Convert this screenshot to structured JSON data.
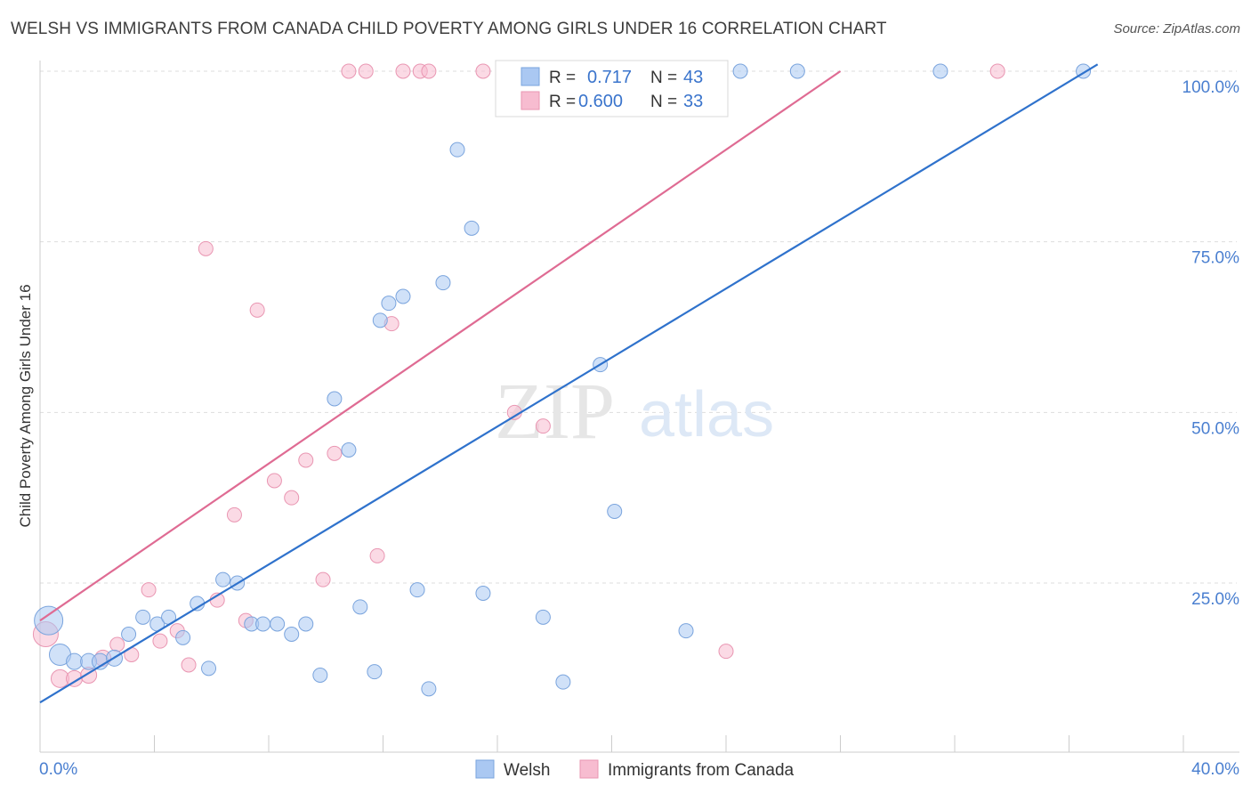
{
  "title": "WELSH VS IMMIGRANTS FROM CANADA CHILD POVERTY AMONG GIRLS UNDER 16 CORRELATION CHART",
  "source": "Source: ZipAtlas.com",
  "watermark": {
    "zip": "ZIP",
    "atlas": "atlas"
  },
  "colors": {
    "welsh_fill": "#aac8f2",
    "welsh_stroke": "#7aa4dd",
    "welsh_line": "#2f72cc",
    "canada_fill": "#f7bcd0",
    "canada_stroke": "#e996b2",
    "canada_line": "#df6b93",
    "tick": "#4a7fd0",
    "grid": "#dddddd"
  },
  "legend": {
    "r_label": "R =",
    "n_label": "N =",
    "welsh": {
      "r": "0.717",
      "n": "43"
    },
    "canada": {
      "r": "0.600",
      "n": "33"
    }
  },
  "chart_data": {
    "type": "scatter",
    "xlabel": "",
    "ylabel": "Child Poverty Among Girls Under 16",
    "xlim": [
      0,
      40
    ],
    "ylim": [
      0,
      100
    ],
    "x_tick_labels": [
      {
        "value": 0,
        "label": "0.0%"
      },
      {
        "value": 40,
        "label": "40.0%"
      }
    ],
    "y_tick_labels": [
      {
        "value": 25,
        "label": "25.0%"
      },
      {
        "value": 50,
        "label": "50.0%"
      },
      {
        "value": 75,
        "label": "75.0%"
      },
      {
        "value": 100,
        "label": "100.0%"
      }
    ],
    "grid": true,
    "legend_position": "bottom",
    "series": [
      {
        "name": "Welsh",
        "color": "#aac8f2",
        "trend": {
          "x": [
            0,
            37
          ],
          "y": 7.5,
          "y_end": 101
        },
        "points": [
          {
            "x": 0.3,
            "y": 19.5,
            "r": 16
          },
          {
            "x": 0.7,
            "y": 14.5,
            "r": 12
          },
          {
            "x": 1.2,
            "y": 13.5,
            "r": 9
          },
          {
            "x": 1.7,
            "y": 13.5,
            "r": 9
          },
          {
            "x": 2.1,
            "y": 13.5,
            "r": 9
          },
          {
            "x": 2.6,
            "y": 14.0,
            "r": 9
          },
          {
            "x": 3.1,
            "y": 17.5,
            "r": 8
          },
          {
            "x": 3.6,
            "y": 20.0,
            "r": 8
          },
          {
            "x": 4.1,
            "y": 19.0,
            "r": 8
          },
          {
            "x": 4.5,
            "y": 20.0,
            "r": 8
          },
          {
            "x": 5.0,
            "y": 17.0,
            "r": 8
          },
          {
            "x": 5.5,
            "y": 22.0,
            "r": 8
          },
          {
            "x": 5.9,
            "y": 12.5,
            "r": 8
          },
          {
            "x": 6.4,
            "y": 25.5,
            "r": 8
          },
          {
            "x": 6.9,
            "y": 25.0,
            "r": 8
          },
          {
            "x": 7.4,
            "y": 19.0,
            "r": 8
          },
          {
            "x": 7.8,
            "y": 19.0,
            "r": 8
          },
          {
            "x": 8.3,
            "y": 19.0,
            "r": 8
          },
          {
            "x": 8.8,
            "y": 17.5,
            "r": 8
          },
          {
            "x": 9.3,
            "y": 19.0,
            "r": 8
          },
          {
            "x": 9.8,
            "y": 11.5,
            "r": 8
          },
          {
            "x": 10.3,
            "y": 52.0,
            "r": 8
          },
          {
            "x": 10.8,
            "y": 44.5,
            "r": 8
          },
          {
            "x": 11.2,
            "y": 21.5,
            "r": 8
          },
          {
            "x": 11.7,
            "y": 12.0,
            "r": 8
          },
          {
            "x": 12.2,
            "y": 66.0,
            "r": 8
          },
          {
            "x": 12.7,
            "y": 67.0,
            "r": 8
          },
          {
            "x": 13.2,
            "y": 24.0,
            "r": 8
          },
          {
            "x": 13.6,
            "y": 9.5,
            "r": 8
          },
          {
            "x": 14.1,
            "y": 69.0,
            "r": 8
          },
          {
            "x": 14.6,
            "y": 88.5,
            "r": 8
          },
          {
            "x": 15.1,
            "y": 77.0,
            "r": 8
          },
          {
            "x": 15.5,
            "y": 23.5,
            "r": 8
          },
          {
            "x": 17.6,
            "y": 20.0,
            "r": 8
          },
          {
            "x": 18.3,
            "y": 10.5,
            "r": 8
          },
          {
            "x": 19.6,
            "y": 57.0,
            "r": 8
          },
          {
            "x": 20.1,
            "y": 35.5,
            "r": 8
          },
          {
            "x": 22.6,
            "y": 18.0,
            "r": 8
          },
          {
            "x": 24.5,
            "y": 100.0,
            "r": 8
          },
          {
            "x": 26.5,
            "y": 100.0,
            "r": 8
          },
          {
            "x": 31.5,
            "y": 100.0,
            "r": 8
          },
          {
            "x": 36.5,
            "y": 100.0,
            "r": 8
          },
          {
            "x": 11.9,
            "y": 63.5,
            "r": 8
          }
        ]
      },
      {
        "name": "Immigrants from Canada",
        "color": "#f7bcd0",
        "trend": {
          "x": [
            0,
            28
          ],
          "y": 19.5,
          "y_end": 100
        },
        "points": [
          {
            "x": 0.2,
            "y": 17.5,
            "r": 14
          },
          {
            "x": 0.7,
            "y": 11.0,
            "r": 10
          },
          {
            "x": 1.2,
            "y": 11.0,
            "r": 9
          },
          {
            "x": 1.7,
            "y": 11.5,
            "r": 9
          },
          {
            "x": 2.2,
            "y": 14.0,
            "r": 9
          },
          {
            "x": 2.7,
            "y": 16.0,
            "r": 8
          },
          {
            "x": 3.2,
            "y": 14.5,
            "r": 8
          },
          {
            "x": 3.8,
            "y": 24.0,
            "r": 8
          },
          {
            "x": 4.2,
            "y": 16.5,
            "r": 8
          },
          {
            "x": 4.8,
            "y": 18.0,
            "r": 8
          },
          {
            "x": 5.2,
            "y": 13.0,
            "r": 8
          },
          {
            "x": 5.8,
            "y": 74.0,
            "r": 8
          },
          {
            "x": 6.2,
            "y": 22.5,
            "r": 8
          },
          {
            "x": 6.8,
            "y": 35.0,
            "r": 8
          },
          {
            "x": 7.2,
            "y": 19.5,
            "r": 8
          },
          {
            "x": 7.6,
            "y": 65.0,
            "r": 8
          },
          {
            "x": 8.2,
            "y": 40.0,
            "r": 8
          },
          {
            "x": 8.8,
            "y": 37.5,
            "r": 8
          },
          {
            "x": 9.3,
            "y": 43.0,
            "r": 8
          },
          {
            "x": 9.9,
            "y": 25.5,
            "r": 8
          },
          {
            "x": 10.3,
            "y": 44.0,
            "r": 8
          },
          {
            "x": 10.8,
            "y": 100.0,
            "r": 8
          },
          {
            "x": 11.4,
            "y": 100.0,
            "r": 8
          },
          {
            "x": 11.8,
            "y": 29.0,
            "r": 8
          },
          {
            "x": 12.3,
            "y": 63.0,
            "r": 8
          },
          {
            "x": 12.7,
            "y": 100.0,
            "r": 8
          },
          {
            "x": 13.3,
            "y": 100.0,
            "r": 8
          },
          {
            "x": 15.5,
            "y": 100.0,
            "r": 8
          },
          {
            "x": 16.6,
            "y": 50.0,
            "r": 8
          },
          {
            "x": 17.6,
            "y": 48.0,
            "r": 8
          },
          {
            "x": 24.0,
            "y": 15.0,
            "r": 8
          },
          {
            "x": 33.5,
            "y": 100.0,
            "r": 8
          },
          {
            "x": 13.6,
            "y": 100.0,
            "r": 8
          }
        ]
      }
    ]
  },
  "bottom_legend": {
    "welsh": "Welsh",
    "canada": "Immigrants from Canada"
  }
}
